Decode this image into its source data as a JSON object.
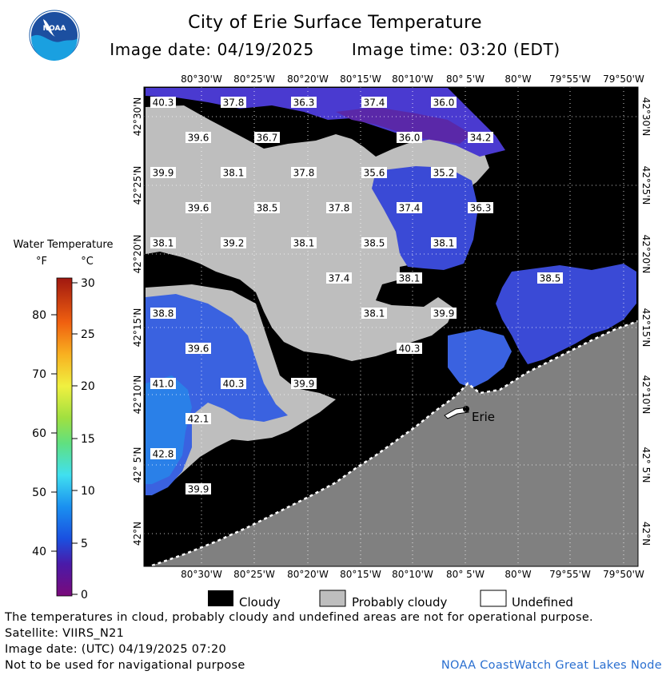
{
  "header": {
    "title": "City of Erie Surface Temperature",
    "image_date": "Image date: 04/19/2025",
    "image_time": "Image time: 03:20 (EDT)"
  },
  "logo": {
    "name": "noaa-logo",
    "text": "NOAA"
  },
  "colors": {
    "cloud": "#000000",
    "probably_cloudy": "#bebebe",
    "land": "#808080",
    "water_cold": "#5a2aa8",
    "water_mid": "#3a5ce0",
    "water_warm": "#2a7de8"
  },
  "legend": {
    "title": "Water Temperature",
    "unit_f": "°F",
    "unit_c": "°C",
    "f_ticks": [
      "80",
      "70",
      "60",
      "50",
      "40"
    ],
    "c_ticks": [
      "30",
      "25",
      "20",
      "15",
      "10",
      "5",
      "0"
    ],
    "cloudy": "Cloudy",
    "probably_cloudy": "Probably cloudy",
    "undefined": "Undefined"
  },
  "axes": {
    "top_lon": [
      "80°30'W",
      "80°25'W",
      "80°20'W",
      "80°15'W",
      "80°10'W",
      "80° 5'W",
      "80°W",
      "79°55'W",
      "79°50'W"
    ],
    "bottom_lon": [
      "80°30'W",
      "80°25'W",
      "80°20'W",
      "80°15'W",
      "80°10'W",
      "80° 5'W",
      "80°W",
      "79°55'W",
      "79°50'W"
    ],
    "lat": [
      "42°30'N",
      "42°25'N",
      "42°20'N",
      "42°15'N",
      "42°10'N",
      "42° 5'N",
      "42°N"
    ]
  },
  "city": "Erie",
  "temperature_labels": [
    "40.3",
    "37.8",
    "36.3",
    "37.4",
    "36.0",
    "39.6",
    "36.7",
    "36.0",
    "34.2",
    "39.9",
    "38.1",
    "37.8",
    "35.6",
    "35.2",
    "39.6",
    "38.5",
    "37.8",
    "37.4",
    "36.3",
    "38.1",
    "39.2",
    "38.1",
    "38.5",
    "38.1",
    "37.4",
    "38.1",
    "38.5",
    "38.8",
    "38.1",
    "39.9",
    "39.6",
    "40.3",
    "41.0",
    "40.3",
    "39.9",
    "42.1",
    "42.8",
    "39.9"
  ],
  "footer": {
    "line1": "The temperatures in cloud, probably cloudy and undefined areas are not for operational purpose.",
    "line2": "Satellite: VIIRS_N21",
    "line3": "Image date: (UTC) 04/19/2025  07:20",
    "line4": "Not to be used for navigational purpose",
    "node": "NOAA CoastWatch Great Lakes Node"
  }
}
